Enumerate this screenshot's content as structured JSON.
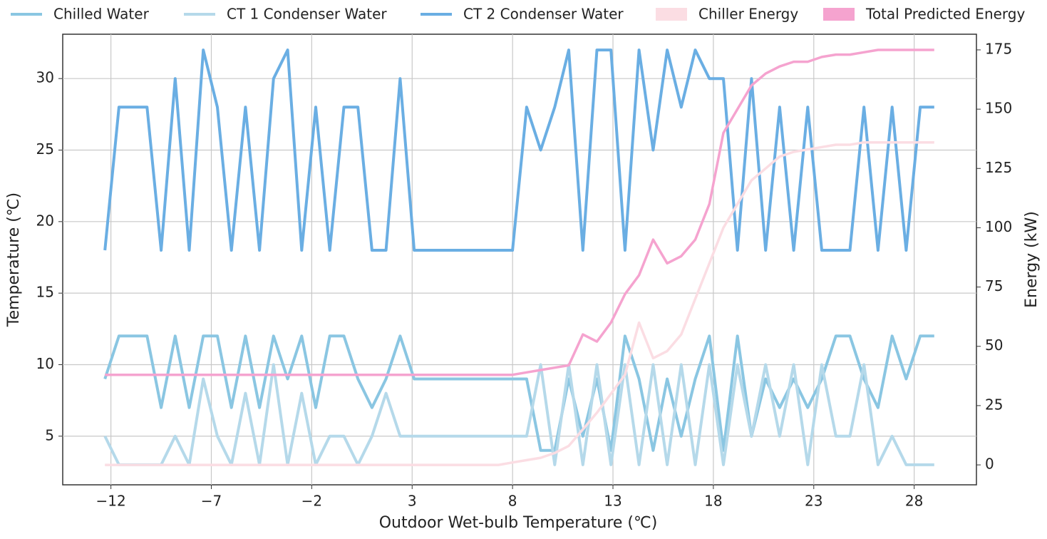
{
  "chart_data": {
    "type": "line",
    "xlabel": "Outdoor Wet-bulb Temperature (℃)",
    "ylabel": "Temperature (℃)",
    "y2label": "Energy (kW)",
    "x": [
      -12.3,
      -11.6,
      -10.9,
      -10.2,
      -9.5,
      -8.8,
      -8.1,
      -7.4,
      -6.7,
      -6.0,
      -5.3,
      -4.6,
      -3.9,
      -3.2,
      -2.5,
      -1.8,
      -1.1,
      -0.4,
      0.3,
      1.0,
      1.7,
      2.4,
      3.1,
      3.8,
      4.5,
      5.2,
      5.9,
      6.6,
      7.3,
      8.0,
      8.7,
      9.4,
      10.1,
      10.8,
      11.5,
      12.2,
      12.9,
      13.6,
      14.3,
      15.0,
      15.7,
      16.4,
      17.1,
      17.8,
      18.5,
      19.2,
      19.9,
      20.6,
      21.3,
      22.0,
      22.7,
      23.4,
      24.1,
      24.8,
      25.5,
      26.2,
      26.9,
      27.6,
      28.3,
      29.0
    ],
    "series": [
      {
        "name": "Chilled Water",
        "color": "#8ac6e2",
        "values": [
          9,
          12,
          12,
          12,
          7,
          12,
          7,
          12,
          12,
          7,
          12,
          7,
          12,
          9,
          12,
          7,
          12,
          12,
          9,
          7,
          9,
          12,
          9,
          9,
          9,
          9,
          9,
          9,
          9,
          9,
          9,
          4,
          4,
          9,
          5,
          9,
          4,
          12,
          9,
          4,
          9,
          5,
          9,
          12,
          4,
          12,
          5,
          9,
          7,
          9,
          7,
          9,
          12,
          12,
          9,
          7,
          12,
          9,
          12,
          12
        ]
      },
      {
        "name": "CT 1 Condenser Water",
        "color": "#b5d9ea",
        "values": [
          5,
          3,
          3,
          3,
          3,
          5,
          3,
          9,
          5,
          3,
          8,
          3,
          10,
          3,
          8,
          3,
          5,
          5,
          3,
          5,
          8,
          5,
          5,
          5,
          5,
          5,
          5,
          5,
          5,
          5,
          5,
          10,
          3,
          10,
          3,
          10,
          3,
          10,
          3,
          10,
          3,
          10,
          3,
          10,
          3,
          10,
          5,
          10,
          5,
          10,
          3,
          10,
          5,
          5,
          10,
          3,
          5,
          3,
          3,
          3
        ]
      },
      {
        "name": "CT 2 Condenser Water",
        "color": "#6aaee3",
        "values": [
          18,
          28,
          28,
          28,
          18,
          30,
          18,
          32,
          28,
          18,
          28,
          18,
          30,
          32,
          18,
          28,
          18,
          28,
          28,
          18,
          18,
          30,
          18,
          18,
          18,
          18,
          18,
          18,
          18,
          18,
          28,
          25,
          28,
          32,
          18,
          32,
          32,
          18,
          32,
          25,
          32,
          28,
          32,
          30,
          30,
          18,
          30,
          18,
          28,
          18,
          28,
          18,
          18,
          18,
          28,
          18,
          28,
          18,
          28,
          28
        ]
      },
      {
        "name": "Chiller Energy",
        "color": "#fbdde3",
        "axis": "y2",
        "values": [
          0,
          0,
          0,
          0,
          0,
          0,
          0,
          0,
          0,
          0,
          0,
          0,
          0,
          0,
          0,
          0,
          0,
          0,
          0,
          0,
          0,
          0,
          0,
          0,
          0,
          0,
          0,
          0,
          0,
          1,
          2,
          3,
          5,
          8,
          15,
          22,
          30,
          38,
          60,
          45,
          48,
          55,
          70,
          85,
          100,
          110,
          120,
          125,
          130,
          132,
          133,
          134,
          135,
          135,
          136,
          136,
          136,
          136,
          136,
          136
        ]
      },
      {
        "name": "Total Predicted Energy",
        "color": "#f5a3cf",
        "axis": "y2",
        "values": [
          38,
          38,
          38,
          38,
          38,
          38,
          38,
          38,
          38,
          38,
          38,
          38,
          38,
          38,
          38,
          38,
          38,
          38,
          38,
          38,
          38,
          38,
          38,
          38,
          38,
          38,
          38,
          38,
          38,
          38,
          39,
          40,
          41,
          42,
          55,
          52,
          60,
          72,
          80,
          95,
          85,
          88,
          95,
          110,
          140,
          150,
          160,
          165,
          168,
          170,
          170,
          172,
          173,
          173,
          174,
          175,
          175,
          175,
          175,
          175
        ]
      }
    ],
    "xlim": [
      -14.4,
      31.1
    ],
    "ylim": [
      1.6,
      33.1
    ],
    "y2lim": [
      -8.4,
      181.6
    ],
    "xticks": [
      {
        "value": -12,
        "label": "−12"
      },
      {
        "value": -7,
        "label": "−7"
      },
      {
        "value": -2,
        "label": "−2"
      },
      3,
      8,
      13,
      18,
      23,
      28
    ],
    "yticks": [
      5,
      10,
      15,
      20,
      25,
      30
    ],
    "y2ticks": [
      0,
      25,
      50,
      75,
      100,
      125,
      150,
      175
    ],
    "grid": true
  }
}
